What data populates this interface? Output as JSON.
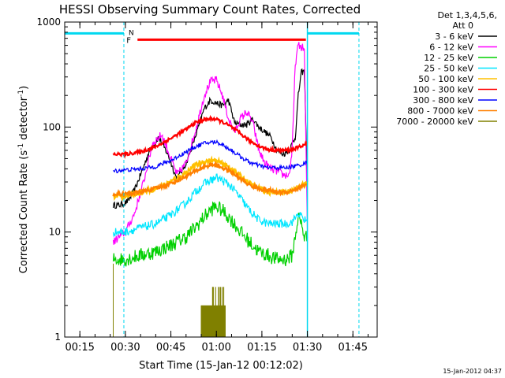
{
  "chart_data": {
    "type": "line",
    "title": "HESSI Observing Summary Count Rates, Corrected",
    "xlabel": "Start Time (15-Jan-12 00:12:02)",
    "ylabel_pre": "Corrected Count Rate (s",
    "ylabel_sup1": "-1",
    "ylabel_mid": " detector",
    "ylabel_sup2": "-1",
    "ylabel_post": ")",
    "y_scale": "log",
    "xlim": [
      "00:10",
      "01:53"
    ],
    "ylim": [
      1,
      1000
    ],
    "x_ticks": [
      "00:15",
      "00:30",
      "00:45",
      "01:00",
      "01:15",
      "01:30",
      "01:45"
    ],
    "y_tick_labels": [
      "1",
      "10",
      "100",
      "1000"
    ],
    "legend_header": [
      "Det 1,3,4,5,6,",
      "Att 0"
    ],
    "legend_position": "right",
    "timestamp": "15-Jan-2012 04:37",
    "flags": {
      "night": {
        "label": "N",
        "color": "#00d8f0",
        "intervals": [
          [
            "00:10",
            "00:29.5"
          ],
          [
            "01:30",
            "01:47"
          ]
        ],
        "level": 780
      },
      "flare": {
        "label": "F",
        "color": "#ff0000",
        "intervals": [
          [
            "00:34",
            "01:29.5"
          ]
        ],
        "level": 680
      },
      "day_start": "00:29.5",
      "day_end": "01:30"
    },
    "series": [
      {
        "name": "3 - 6 keV",
        "color": "#000000",
        "x": [
          "00:26",
          "00:28",
          "00:30",
          "00:31",
          "00:33",
          "00:35",
          "00:38",
          "00:41",
          "00:44",
          "00:47",
          "00:50",
          "00:53",
          "00:56",
          "00:58",
          "01:00",
          "01:02",
          "01:04",
          "01:06",
          "01:08",
          "01:10",
          "01:12",
          "01:14",
          "01:16",
          "01:18",
          "01:20",
          "01:22",
          "01:24",
          "01:26",
          "01:27",
          "01:28",
          "01:29",
          "01:30"
        ],
        "values": [
          18,
          18,
          19,
          20,
          25,
          35,
          60,
          80,
          55,
          32,
          45,
          80,
          150,
          180,
          170,
          160,
          180,
          110,
          105,
          105,
          120,
          100,
          90,
          80,
          60,
          55,
          60,
          80,
          200,
          330,
          340,
          30
        ]
      },
      {
        "name": "6 - 12 keV",
        "color": "#ff00ff",
        "x": [
          "00:26",
          "00:28",
          "00:30",
          "00:33",
          "00:36",
          "00:39",
          "00:42",
          "00:44",
          "00:47",
          "00:50",
          "00:53",
          "00:56",
          "00:58",
          "01:00",
          "01:02",
          "01:04",
          "01:06",
          "01:08",
          "01:10",
          "01:12",
          "01:14",
          "01:16",
          "01:18",
          "01:20",
          "01:22",
          "01:24",
          "01:25",
          "01:26",
          "01:27",
          "01:28",
          "01:29",
          "01:30"
        ],
        "values": [
          8,
          9,
          10,
          15,
          30,
          70,
          85,
          60,
          35,
          45,
          90,
          200,
          270,
          280,
          200,
          120,
          90,
          120,
          140,
          110,
          60,
          45,
          40,
          38,
          35,
          35,
          60,
          400,
          600,
          580,
          550,
          10
        ]
      },
      {
        "name": "12 - 25 keV",
        "color": "#00d000",
        "x": [
          "00:26",
          "00:30",
          "00:35",
          "00:40",
          "00:45",
          "00:50",
          "00:53",
          "00:56",
          "00:59",
          "01:00",
          "01:02",
          "01:05",
          "01:08",
          "01:11",
          "01:14",
          "01:17",
          "01:20",
          "01:23",
          "01:25",
          "01:27",
          "01:28",
          "01:29",
          "01:30"
        ],
        "values": [
          5.5,
          5.5,
          6,
          6.5,
          7.5,
          9,
          11,
          14,
          17,
          17.5,
          16,
          13,
          10,
          8,
          6.5,
          6,
          5.5,
          5.5,
          6,
          14,
          12,
          9,
          9
        ]
      },
      {
        "name": "25 - 50 keV",
        "color": "#00e6ff",
        "x": [
          "00:26",
          "00:30",
          "00:35",
          "00:40",
          "00:45",
          "00:50",
          "00:53",
          "00:56",
          "00:59",
          "01:00",
          "01:02",
          "01:05",
          "01:08",
          "01:11",
          "01:14",
          "01:17",
          "01:20",
          "01:23",
          "01:25",
          "01:27",
          "01:28",
          "01:29",
          "01:30"
        ],
        "values": [
          10,
          10,
          11,
          12,
          14.5,
          19,
          24,
          29,
          32,
          33,
          31,
          27,
          21,
          16,
          13,
          12,
          12,
          12,
          12.5,
          15,
          14,
          13,
          13
        ]
      },
      {
        "name": "50 - 100 keV",
        "color": "#ffc000",
        "x": [
          "00:26",
          "00:30",
          "00:35",
          "00:40",
          "00:45",
          "00:50",
          "00:53",
          "00:56",
          "00:59",
          "01:00",
          "01:02",
          "01:05",
          "01:08",
          "01:11",
          "01:14",
          "01:17",
          "01:20",
          "01:23",
          "01:25",
          "01:27",
          "01:28",
          "01:29",
          "01:30"
        ],
        "values": [
          22,
          22,
          24,
          26,
          30,
          37,
          43,
          47,
          48,
          47,
          45,
          40,
          34,
          29,
          26,
          24,
          24,
          24,
          25,
          27,
          28,
          28,
          30
        ]
      },
      {
        "name": "100 - 300 keV",
        "color": "#ff0000",
        "x": [
          "00:26",
          "00:30",
          "00:35",
          "00:40",
          "00:45",
          "00:50",
          "00:53",
          "00:56",
          "00:59",
          "01:00",
          "01:02",
          "01:05",
          "01:08",
          "01:11",
          "01:14",
          "01:17",
          "01:20",
          "01:23",
          "01:25",
          "01:27",
          "01:28",
          "01:29",
          "01:30"
        ],
        "values": [
          55,
          55,
          58,
          65,
          78,
          95,
          110,
          118,
          120,
          118,
          112,
          100,
          86,
          74,
          66,
          61,
          60,
          60,
          61,
          64,
          66,
          68,
          70
        ]
      },
      {
        "name": "300 - 800 keV",
        "color": "#0000ff",
        "x": [
          "00:26",
          "00:30",
          "00:35",
          "00:40",
          "00:45",
          "00:50",
          "00:53",
          "00:56",
          "00:59",
          "01:00",
          "01:02",
          "01:05",
          "01:08",
          "01:11",
          "01:14",
          "01:17",
          "01:20",
          "01:23",
          "01:25",
          "01:27",
          "01:28",
          "01:29",
          "01:30"
        ],
        "values": [
          38,
          39,
          40,
          42,
          48,
          58,
          65,
          70,
          72,
          72,
          68,
          60,
          52,
          46,
          43,
          41,
          41,
          41,
          42,
          43,
          44,
          45,
          46
        ]
      },
      {
        "name": "800 - 7000 keV",
        "color": "#ff8000",
        "x": [
          "00:26",
          "00:30",
          "00:35",
          "00:40",
          "00:45",
          "00:50",
          "00:53",
          "00:56",
          "00:59",
          "01:00",
          "01:02",
          "01:05",
          "01:08",
          "01:11",
          "01:14",
          "01:17",
          "01:20",
          "01:23",
          "01:25",
          "01:27",
          "01:28",
          "01:29",
          "01:30"
        ],
        "values": [
          23,
          23,
          24,
          26,
          29,
          34,
          38,
          42,
          44,
          43,
          41,
          37,
          32,
          28,
          26,
          25,
          24,
          24,
          25,
          26,
          27,
          28,
          29
        ]
      },
      {
        "name": "7000 - 20000 keV",
        "color": "#808000",
        "x": [
          "00:55",
          "00:56",
          "00:57",
          "00:58",
          "00:59",
          "01:00",
          "01:01",
          "01:02",
          "01:03"
        ],
        "values": [
          2,
          2,
          2,
          2,
          3,
          2,
          2,
          2,
          2
        ]
      }
    ]
  }
}
